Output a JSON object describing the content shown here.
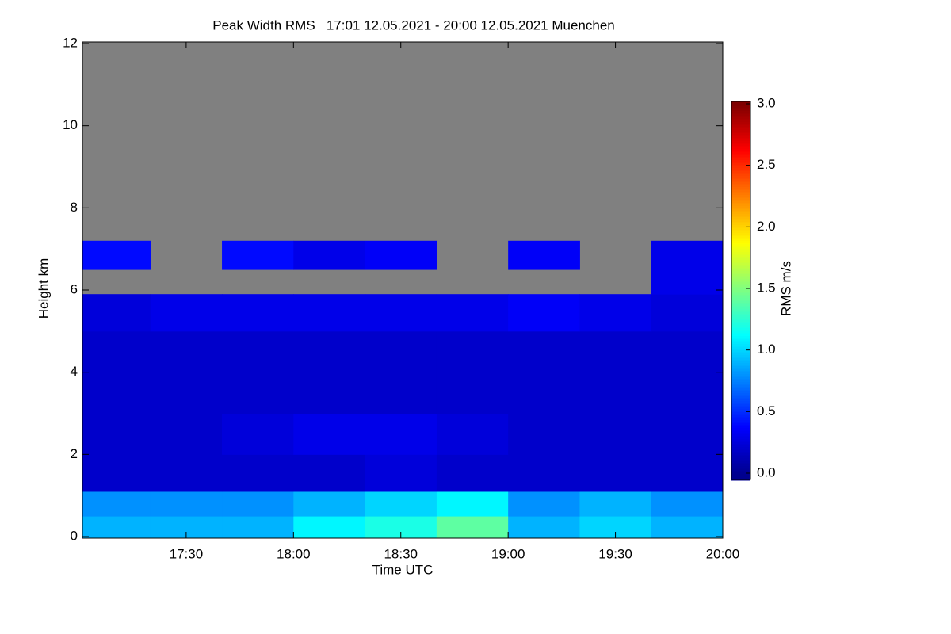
{
  "chart_data": {
    "type": "heatmap",
    "title": "Peak Width RMS   17:01 12.05.2021 - 20:00 12.05.2021 Muenchen",
    "x_label": "Time UTC",
    "y_label": "Height km",
    "colorbar_label": "RMS m/s",
    "xbins": [
      17.0167,
      17.3333,
      17.6667,
      18,
      18.3333,
      18.6667,
      19,
      19.3333,
      19.6667,
      20
    ],
    "ybins": [
      0,
      0.5,
      1.1,
      2,
      3,
      4,
      5,
      5.9,
      6.5,
      7.2,
      12
    ],
    "z": [
      [
        0.9,
        0.9,
        0.9,
        1.1,
        1.2,
        1.4,
        0.9,
        1.0,
        0.9
      ],
      [
        0.8,
        0.8,
        0.8,
        0.9,
        1.0,
        1.1,
        0.8,
        0.9,
        0.8
      ],
      [
        0.2,
        0.2,
        0.2,
        0.2,
        0.25,
        0.2,
        0.2,
        0.2,
        0.2
      ],
      [
        0.2,
        0.2,
        0.25,
        0.3,
        0.3,
        0.25,
        0.2,
        0.2,
        0.2
      ],
      [
        0.2,
        0.2,
        0.2,
        0.2,
        0.2,
        0.2,
        0.2,
        0.2,
        0.2
      ],
      [
        0.2,
        0.2,
        0.2,
        0.2,
        0.2,
        0.2,
        0.2,
        0.2,
        0.2
      ],
      [
        0.25,
        0.3,
        0.3,
        0.3,
        0.3,
        0.3,
        0.35,
        0.3,
        0.25
      ],
      [
        null,
        null,
        null,
        null,
        null,
        null,
        null,
        null,
        0.3
      ],
      [
        0.4,
        null,
        0.4,
        0.3,
        0.35,
        null,
        0.35,
        null,
        0.3
      ],
      [
        null,
        null,
        null,
        null,
        null,
        null,
        null,
        null,
        null
      ]
    ],
    "xlim": [
      17.0167,
      20
    ],
    "xticks": [
      {
        "value": 17.5,
        "label": "17:30"
      },
      {
        "value": 18,
        "label": "18:00"
      },
      {
        "value": 18.5,
        "label": "18:30"
      },
      {
        "value": 19,
        "label": "19:00"
      },
      {
        "value": 19.5,
        "label": "19:30"
      },
      {
        "value": 20,
        "label": "20:00"
      }
    ],
    "ylim": [
      0,
      12
    ],
    "yticks": [
      0,
      2,
      4,
      6,
      8,
      10,
      12
    ],
    "zlim": [
      0,
      3
    ],
    "zticks": [
      {
        "value": 0,
        "label": "0.0"
      },
      0.5,
      {
        "value": 1,
        "label": "1.0"
      },
      1.5,
      {
        "value": 2,
        "label": "2.0"
      },
      2.5,
      {
        "value": 3,
        "label": "3.0"
      }
    ],
    "colormap": [
      "#00008f",
      "#0000ff",
      "#0080ff",
      "#00ffff",
      "#80ff80",
      "#ffff00",
      "#ff8000",
      "#ff0000",
      "#800000"
    ],
    "nodata_color": "#808080"
  }
}
